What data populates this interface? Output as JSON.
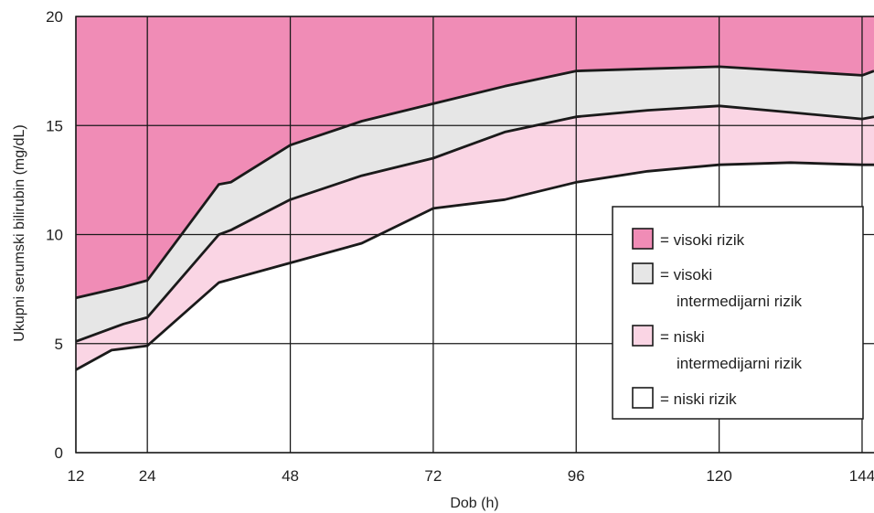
{
  "chart_data": {
    "type": "area",
    "title": "",
    "xlabel": "Dob (h)",
    "ylabel": "Ukupni serumski bilirubin (mg/dL)",
    "xlim": [
      12,
      146
    ],
    "ylim": [
      0,
      20
    ],
    "x_ticks": [
      12,
      24,
      48,
      72,
      96,
      120,
      144
    ],
    "y_ticks": [
      0,
      5,
      10,
      15,
      20
    ],
    "grid": true,
    "legend_position": "right",
    "colors": {
      "high": "#f08cb6",
      "high_intermediate": "#e6e6e6",
      "low_intermediate": "#fad5e4",
      "low": "#ffffff",
      "line": "#1a1a1a",
      "grid": "#1a1a1a"
    },
    "boundaries": [
      {
        "id": "high_threshold",
        "points": [
          [
            12,
            7.1
          ],
          [
            20,
            7.6
          ],
          [
            24,
            7.9
          ],
          [
            36,
            12.3
          ],
          [
            38,
            12.4
          ],
          [
            48,
            14.1
          ],
          [
            60,
            15.2
          ],
          [
            72,
            16.0
          ],
          [
            84,
            16.8
          ],
          [
            96,
            17.5
          ],
          [
            108,
            17.6
          ],
          [
            120,
            17.7
          ],
          [
            132,
            17.5
          ],
          [
            144,
            17.3
          ],
          [
            146,
            17.5
          ]
        ]
      },
      {
        "id": "intermediate_threshold",
        "points": [
          [
            12,
            5.1
          ],
          [
            20,
            5.9
          ],
          [
            24,
            6.2
          ],
          [
            36,
            10.0
          ],
          [
            38,
            10.2
          ],
          [
            48,
            11.6
          ],
          [
            60,
            12.7
          ],
          [
            72,
            13.5
          ],
          [
            84,
            14.7
          ],
          [
            96,
            15.4
          ],
          [
            108,
            15.7
          ],
          [
            120,
            15.9
          ],
          [
            132,
            15.6
          ],
          [
            144,
            15.3
          ],
          [
            146,
            15.4
          ]
        ]
      },
      {
        "id": "low_threshold",
        "points": [
          [
            12,
            3.8
          ],
          [
            18,
            4.7
          ],
          [
            24,
            4.9
          ],
          [
            36,
            7.8
          ],
          [
            48,
            8.7
          ],
          [
            60,
            9.6
          ],
          [
            72,
            11.2
          ],
          [
            84,
            11.6
          ],
          [
            96,
            12.4
          ],
          [
            108,
            12.9
          ],
          [
            120,
            13.2
          ],
          [
            132,
            13.3
          ],
          [
            144,
            13.2
          ],
          [
            146,
            13.2
          ]
        ]
      }
    ],
    "series": [
      {
        "name": "= visoki rizik",
        "color": "#f08cb6",
        "lower": "high_threshold",
        "upper": "top"
      },
      {
        "name": "= visoki intermedijarni rizik",
        "color": "#e6e6e6",
        "lower": "intermediate_threshold",
        "upper": "high_threshold"
      },
      {
        "name": "= niski intermedijarni rizik",
        "color": "#fad5e4",
        "lower": "low_threshold",
        "upper": "intermediate_threshold"
      },
      {
        "name": "= niski rizik",
        "color": "#ffffff",
        "lower": "bottom",
        "upper": "low_threshold"
      }
    ],
    "legend": [
      {
        "lines": [
          "= visoki rizik"
        ],
        "color": "#f08cb6"
      },
      {
        "lines": [
          "= visoki",
          "intermedijarni rizik"
        ],
        "color": "#e6e6e6"
      },
      {
        "lines": [
          "= niski",
          "intermedijarni rizik"
        ],
        "color": "#fad5e4"
      },
      {
        "lines": [
          "= niski rizik"
        ],
        "color": "#ffffff"
      }
    ]
  }
}
